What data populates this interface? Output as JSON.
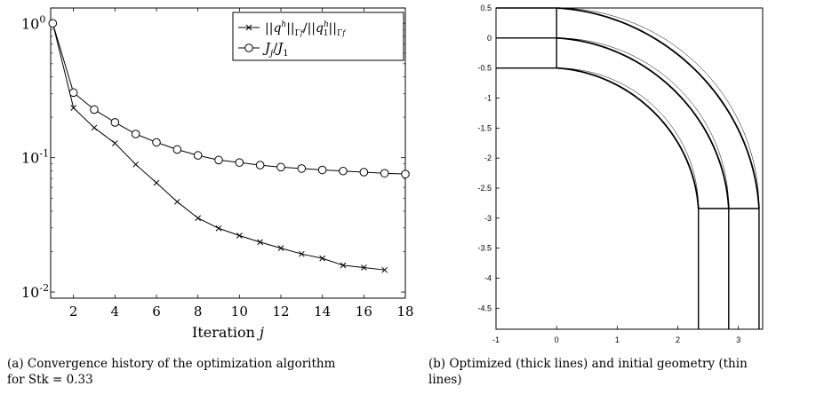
{
  "chart_data": [
    {
      "type": "line",
      "title": "",
      "xlabel": "Iteration j",
      "ylabel": "",
      "yscale": "log",
      "xlim": [
        0.9,
        18
      ],
      "ylim": [
        0.009,
        1.3
      ],
      "x_ticks": [
        2,
        4,
        6,
        8,
        10,
        12,
        14,
        16,
        18
      ],
      "x_tick_labels": [
        "2",
        "4",
        "6",
        "8",
        "10",
        "12",
        "14",
        "16",
        "18"
      ],
      "y_ticks": [
        1,
        0.1,
        0.01
      ],
      "y_tick_labels": [
        "10^0",
        "10^-1",
        "10^-2"
      ],
      "legend_position": "top-right",
      "series": [
        {
          "name": "||q^h||_Γf / ||q^h_1||_Γf",
          "marker": "x",
          "x": [
            1,
            2,
            3,
            4,
            5,
            6,
            7,
            8,
            9,
            10,
            11,
            12,
            13,
            14,
            15,
            16,
            17
          ],
          "y": [
            1.0,
            0.235,
            0.167,
            0.128,
            0.089,
            0.065,
            0.047,
            0.0355,
            0.0298,
            0.0263,
            0.0235,
            0.0212,
            0.0192,
            0.0178,
            0.0158,
            0.0152,
            0.0146
          ]
        },
        {
          "name": "J_j / J_1",
          "marker": "o",
          "x": [
            1,
            2,
            3,
            4,
            5,
            6,
            7,
            8,
            9,
            10,
            11,
            12,
            13,
            14,
            15,
            16,
            17,
            18
          ],
          "y": [
            1.0,
            0.305,
            0.228,
            0.183,
            0.15,
            0.13,
            0.115,
            0.104,
            0.096,
            0.092,
            0.088,
            0.085,
            0.083,
            0.081,
            0.0795,
            0.078,
            0.0765,
            0.0755
          ]
        }
      ]
    },
    {
      "type": "line",
      "title": "",
      "xlabel": "",
      "ylabel": "",
      "xlim": [
        -1,
        3.4
      ],
      "ylim": [
        -4.85,
        0.5
      ],
      "x_tick_labels": [
        "-1",
        "0",
        "1",
        "2",
        "3"
      ],
      "y_tick_labels": [
        "0.5",
        "0",
        "-0.5",
        "-1",
        "-1.5",
        "-2",
        "-2.5",
        "-3",
        "-3.5",
        "-4",
        "-4.5"
      ],
      "series": [
        {
          "name": "optimized",
          "style": "thick",
          "geometry": {
            "outer_wall_radius": 3.34,
            "center_line_radius": 2.84,
            "inner_wall_radius": 2.34,
            "bend_center": [
              0,
              -2.84
            ],
            "inlet_x_range": [
              -1,
              0
            ],
            "outlet_y_range": [
              -4.85,
              -2.84
            ]
          }
        },
        {
          "name": "initial",
          "style": "thin",
          "geometry": {
            "outer_wall_radius": 3.34,
            "center_line_radius": 2.84,
            "inner_wall_radius": 2.34,
            "bend_center": [
              0,
              -2.84
            ]
          }
        }
      ]
    }
  ],
  "captions": {
    "a_line1": "(a) Convergence history of the optimization algorithm",
    "a_line2": "for Stk = 0.33",
    "b_line1": "(b) Optimized (thick lines) and initial geometry (thin",
    "b_line2": "lines)"
  }
}
